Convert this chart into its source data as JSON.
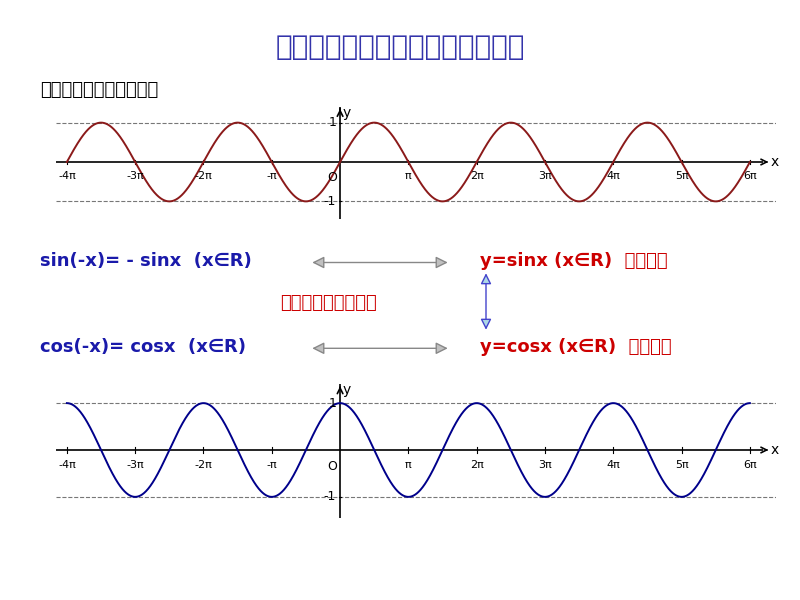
{
  "title": "正弦、余弦函数的奇偶性、单调性",
  "subtitle": "正弦、余弦函数的奇偶性",
  "title_color": "#3333aa",
  "subtitle_color": "#000000",
  "bg_color": "#ffffff",
  "sin_color": "#8B1A1A",
  "cos_color": "#00008B",
  "axis_color": "#000000",
  "dashed_color": "#777777",
  "x_min": -4,
  "x_max": 6,
  "pi_ticks": [
    -4,
    -3,
    -2,
    -1,
    0,
    1,
    2,
    3,
    4,
    5,
    6
  ],
  "text_sin1": "sin(-x)= - sinx  (x∈R)",
  "text_sin2": "y=sinx (x∈R)  是奇函数",
  "text_arrow_label": "定义域关于原点对称",
  "text_cos1": "cos(-x)= cosx  (x∈R)",
  "text_cos2": "y=cosx (x∈R)  是偶函数",
  "blue_color": "#1a1aaa",
  "red_color": "#cc0000",
  "arrow_fill": "#c0c0c0",
  "arrow_edge": "#888888",
  "varrow_fill": "#add8e6",
  "varrow_edge": "#4444cc"
}
